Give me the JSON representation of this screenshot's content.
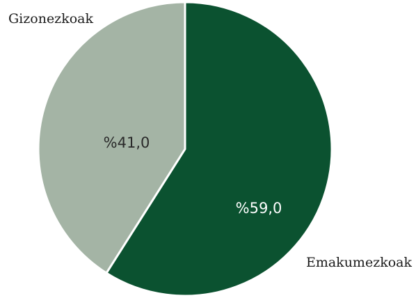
{
  "chart_data": {
    "type": "pie",
    "title": "",
    "slices": [
      {
        "label": "Emakumezkoak",
        "value": 59.0,
        "value_label": "%59,0",
        "color": "#0b5230",
        "text_color": "#ffffff"
      },
      {
        "label": "Gizonezkoak",
        "value": 41.0,
        "value_label": "%41,0",
        "color": "#a4b4a5",
        "text_color": "#2a2a2a"
      }
    ],
    "start_angle_deg": 0,
    "direction": "clockwise",
    "separator_color": "#ffffff"
  }
}
